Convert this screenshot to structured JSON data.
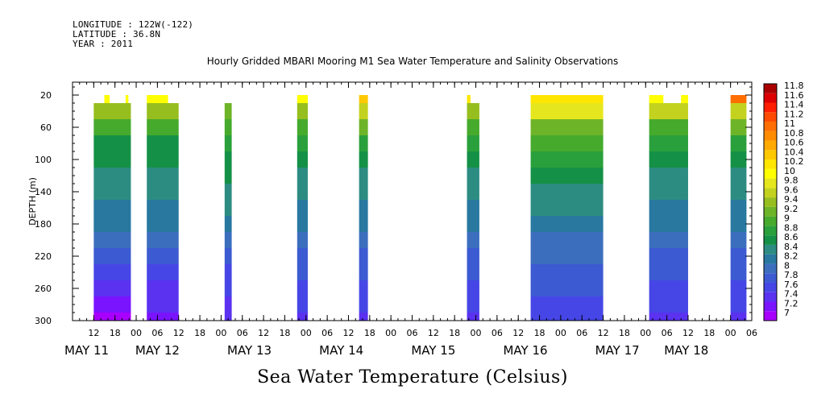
{
  "header": {
    "longitude": "LONGITUDE : 122W(-122)",
    "latitude": "LATITUDE : 36.8N",
    "year": "YEAR : 2011"
  },
  "chart_data": {
    "type": "heatmap",
    "title": "Hourly Gridded MBARI Mooring M1 Sea Water Temperature and Salinity Observations",
    "xlabel": "Sea Water Temperature (Celsius)",
    "ylabel": "DEPTH (m)",
    "x_unit": "hours since MAY 11 00:00",
    "xlim": [
      -18,
      174
    ],
    "ylim": [
      300,
      4
    ],
    "y_ticks": [
      20,
      60,
      100,
      140,
      180,
      220,
      260,
      300
    ],
    "hour_ticks": [
      {
        "x": -12,
        "label": "12"
      },
      {
        "x": -6,
        "label": "18"
      },
      {
        "x": 0,
        "label": "00"
      },
      {
        "x": 6,
        "label": "06"
      },
      {
        "x": 12,
        "label": "12"
      },
      {
        "x": 18,
        "label": "18"
      },
      {
        "x": 24,
        "label": "00"
      },
      {
        "x": 30,
        "label": "06"
      },
      {
        "x": 36,
        "label": "12"
      },
      {
        "x": 42,
        "label": "18"
      },
      {
        "x": 48,
        "label": "00"
      },
      {
        "x": 54,
        "label": "06"
      },
      {
        "x": 60,
        "label": "12"
      },
      {
        "x": 66,
        "label": "18"
      },
      {
        "x": 72,
        "label": "00"
      },
      {
        "x": 78,
        "label": "06"
      },
      {
        "x": 84,
        "label": "12"
      },
      {
        "x": 90,
        "label": "18"
      },
      {
        "x": 96,
        "label": "00"
      },
      {
        "x": 102,
        "label": "06"
      },
      {
        "x": 108,
        "label": "12"
      },
      {
        "x": 114,
        "label": "18"
      },
      {
        "x": 120,
        "label": "00"
      },
      {
        "x": 126,
        "label": "06"
      },
      {
        "x": 132,
        "label": "12"
      },
      {
        "x": 138,
        "label": "18"
      },
      {
        "x": 144,
        "label": "00"
      },
      {
        "x": 150,
        "label": "06"
      },
      {
        "x": 156,
        "label": "12"
      },
      {
        "x": 162,
        "label": "18"
      },
      {
        "x": 168,
        "label": "00"
      },
      {
        "x": 174,
        "label": "06"
      }
    ],
    "day_labels": [
      {
        "x": -14,
        "label": "MAY 11"
      },
      {
        "x": 6,
        "label": "MAY 12"
      },
      {
        "x": 32,
        "label": "MAY 13"
      },
      {
        "x": 58,
        "label": "MAY 14"
      },
      {
        "x": 84,
        "label": "MAY 15"
      },
      {
        "x": 110,
        "label": "MAY 16"
      },
      {
        "x": 136,
        "label": "MAY 17"
      },
      {
        "x": 155.5,
        "label": "MAY 18"
      }
    ],
    "color_levels": [
      7,
      7.2,
      7.4,
      7.6,
      7.8,
      8,
      8.2,
      8.4,
      8.6,
      8.8,
      9,
      9.2,
      9.4,
      9.6,
      9.8,
      10,
      10.2,
      10.4,
      10.6,
      10.8,
      11,
      11.2,
      11.4,
      11.6,
      11.8
    ],
    "colorbar_labels": [
      "11.8",
      "11.6",
      "11.4",
      "11.2",
      "11",
      "10.8",
      "10.6",
      "10.4",
      "10.2",
      "10",
      "9.8",
      "9.6",
      "9.4",
      "9.2",
      "9",
      "8.8",
      "8.6",
      "8.4",
      "8.2",
      "8",
      "7.8",
      "7.6",
      "7.4",
      "7.2",
      "7"
    ],
    "colors": [
      "#a800ff",
      "#7a14ff",
      "#5a32f0",
      "#4646e6",
      "#3c5ad2",
      "#3c6ebe",
      "#2878a0",
      "#2d8c82",
      "#149146",
      "#2aa03c",
      "#46aa2d",
      "#6eb428",
      "#96be1e",
      "#c3d21e",
      "#e6e61e",
      "#ffff00",
      "#ffe600",
      "#ffc800",
      "#ffaa00",
      "#ff8c00",
      "#ff6e00",
      "#ff4b00",
      "#ff1e00",
      "#dc0000",
      "#aa0000"
    ],
    "depth_rows": [
      20,
      40,
      60,
      80,
      100,
      120,
      140,
      160,
      180,
      200,
      220,
      240,
      260,
      280,
      300
    ],
    "segments": [
      {
        "x": [
          -12,
          -1.5
        ],
        "temps": [
          10.0,
          9.4,
          9.0,
          8.7,
          8.6,
          8.5,
          8.4,
          8.3,
          8.2,
          8.0,
          7.8,
          7.6,
          7.4,
          7.2,
          7.1
        ],
        "top20": [
          [
            -9,
            -7.5
          ],
          [
            -3,
            -2.2
          ]
        ]
      },
      {
        "x": [
          3,
          12
        ],
        "temps": [
          10.0,
          9.4,
          9.0,
          8.7,
          8.6,
          8.5,
          8.4,
          8.3,
          8.2,
          8.0,
          7.8,
          7.6,
          7.5,
          7.4,
          7.3
        ],
        "top20": [
          [
            3,
            9
          ]
        ]
      },
      {
        "x": [
          25,
          27
        ],
        "temps": [
          null,
          9.2,
          9.0,
          8.9,
          8.7,
          8.6,
          8.5,
          8.4,
          8.2,
          8.0,
          7.9,
          7.7,
          7.6,
          7.5,
          7.4
        ],
        "top20": []
      },
      {
        "x": [
          45.5,
          48.5
        ],
        "temps": [
          10.0,
          9.5,
          9.1,
          8.8,
          8.6,
          8.5,
          8.4,
          8.3,
          8.2,
          8.1,
          7.9,
          7.8,
          7.7,
          7.6,
          7.5
        ],
        "top20": [
          [
            45.5,
            48.5
          ]
        ]
      },
      {
        "x": [
          63,
          65.5
        ],
        "temps": [
          10.4,
          9.7,
          9.2,
          8.9,
          8.7,
          8.5,
          8.4,
          8.3,
          8.2,
          8.1,
          7.9,
          7.8,
          7.7,
          7.6,
          7.5
        ],
        "top20": [
          [
            63,
            65.5
          ]
        ]
      },
      {
        "x": [
          93.5,
          97
        ],
        "temps": [
          10.3,
          9.5,
          9.0,
          8.8,
          8.6,
          8.5,
          8.4,
          8.3,
          8.2,
          8.1,
          7.9,
          7.8,
          7.7,
          7.6,
          7.5
        ],
        "top20": [
          [
            93.5,
            94.5
          ]
        ]
      },
      {
        "x": [
          111.5,
          132
        ],
        "temps": [
          10.3,
          9.8,
          9.3,
          9.0,
          8.8,
          8.6,
          8.5,
          8.4,
          8.3,
          8.1,
          8.0,
          7.9,
          7.8,
          7.7,
          7.6
        ],
        "top20": [
          [
            111.5,
            132
          ]
        ]
      },
      {
        "x": [
          145,
          156
        ],
        "temps": [
          10.0,
          9.6,
          9.1,
          8.8,
          8.7,
          8.5,
          8.4,
          8.3,
          8.2,
          8.0,
          7.9,
          7.8,
          7.7,
          7.6,
          7.5
        ],
        "top20": [
          [
            145,
            149
          ],
          [
            154,
            156
          ]
        ]
      },
      {
        "x": [
          168,
          172.5
        ],
        "temps": [
          11.0,
          9.7,
          9.2,
          8.9,
          8.7,
          8.5,
          8.4,
          8.3,
          8.2,
          8.1,
          7.9,
          7.8,
          7.7,
          7.6,
          7.5
        ],
        "top20": [
          [
            168,
            172.5
          ]
        ]
      }
    ]
  }
}
